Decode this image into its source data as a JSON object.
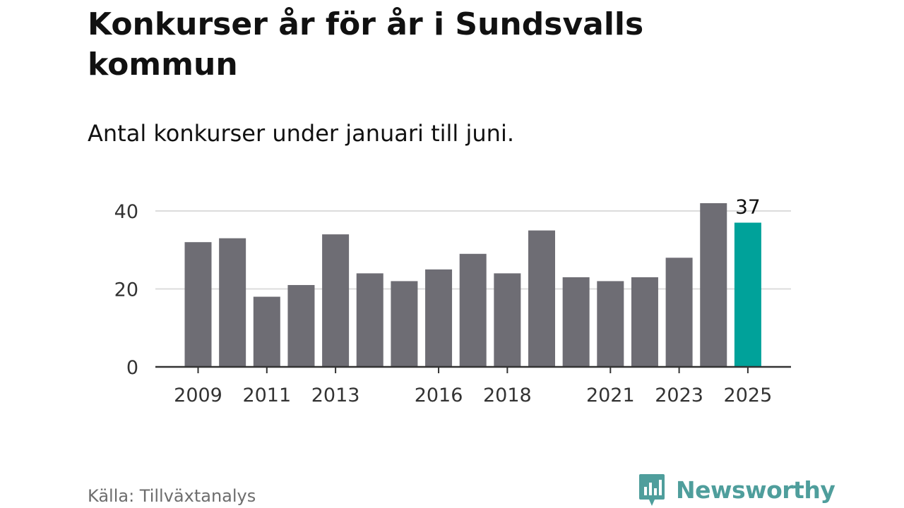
{
  "title": "Konkurser år för år i Sundsvalls kommun",
  "subtitle": "Antal konkurser under januari till juni.",
  "source": "Källa: Tillväxtanalys",
  "brand": {
    "name": "Newsworthy",
    "icon": "newsworthy-logo-icon"
  },
  "colors": {
    "bar": "#6e6d74",
    "highlight": "#00a29a",
    "grid": "#dcdcdc",
    "axis": "#333333",
    "brand": "#4f9e9c"
  },
  "chart_data": {
    "type": "bar",
    "categories": [
      "2009",
      "2010",
      "2011",
      "2012",
      "2013",
      "2014",
      "2015",
      "2016",
      "2017",
      "2018",
      "2019",
      "2020",
      "2021",
      "2022",
      "2023",
      "2024",
      "2025"
    ],
    "values": [
      32,
      33,
      18,
      21,
      34,
      24,
      22,
      25,
      29,
      24,
      35,
      23,
      22,
      23,
      28,
      42,
      37
    ],
    "highlight_index": 16,
    "tick_labels": [
      "2009",
      "2011",
      "2013",
      "2016",
      "2018",
      "2021",
      "2023",
      "2025"
    ],
    "yticks": [
      0,
      20,
      40
    ],
    "ylim": [
      0,
      45
    ],
    "data_labels": [
      {
        "category": "2025",
        "text": "37"
      }
    ],
    "grid": true
  }
}
